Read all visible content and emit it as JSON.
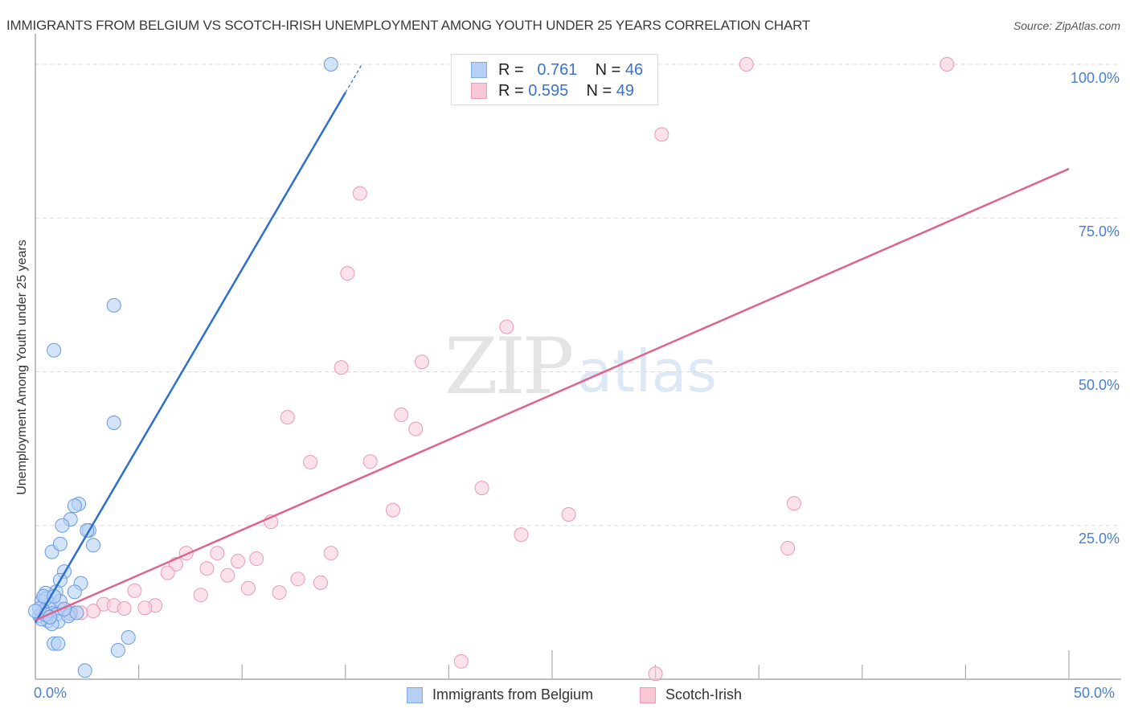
{
  "header": {
    "title": "IMMIGRANTS FROM BELGIUM VS SCOTCH-IRISH UNEMPLOYMENT AMONG YOUTH UNDER 25 YEARS CORRELATION CHART",
    "source": "Source: ZipAtlas.com"
  },
  "watermark": {
    "zip": "ZIP",
    "atlas": "atlas"
  },
  "legend": {
    "rows": [
      {
        "r_label": "R =",
        "r_value": "0.761",
        "n_label": "N =",
        "n_value": "46",
        "color": "#b6d0f5",
        "border": "#7ea8e6"
      },
      {
        "r_label": "R =",
        "r_value": "0.595",
        "n_label": "N =",
        "n_value": "49",
        "color": "#f9c6d6",
        "border": "#ec9bb6"
      }
    ]
  },
  "axes": {
    "y_label": "Unemployment Among Youth under 25 years",
    "y_ticks": [
      "100.0%",
      "75.0%",
      "50.0%",
      "25.0%"
    ],
    "x_ticks": [
      "0.0%",
      "50.0%"
    ]
  },
  "bottom_legend": {
    "items": [
      {
        "label": "Immigrants from Belgium",
        "color": "#b6d0f5",
        "border": "#7ea8e6"
      },
      {
        "label": "Scotch-Irish",
        "color": "#f9c6d6",
        "border": "#ec9bb6"
      }
    ]
  },
  "colors": {
    "blue_line": "#2a6fd1",
    "pink_line": "#e0628f",
    "blue_fill": "#b6d0f5",
    "blue_stroke": "#6a9be0",
    "pink_fill": "#f9cfdc",
    "pink_stroke": "#e99ab5",
    "grid": "#d9d9d9"
  },
  "chart_data": {
    "type": "scatter",
    "title": "IMMIGRANTS FROM BELGIUM VS SCOTCH-IRISH UNEMPLOYMENT AMONG YOUTH UNDER 25 YEARS CORRELATION CHART",
    "xlabel": "",
    "ylabel": "Unemployment Among Youth under 25 years",
    "xlim": [
      0,
      50
    ],
    "ylim": [
      0,
      100
    ],
    "x_ticks": [
      0,
      50
    ],
    "y_ticks": [
      25,
      50,
      75,
      100
    ],
    "grid": true,
    "legend_position": "bottom",
    "series": [
      {
        "name": "Immigrants from Belgium",
        "r": 0.761,
        "n": 46,
        "trend": {
          "x0": 0,
          "y0": 9.2,
          "x1": 15.8,
          "y1": 100
        },
        "points": [
          [
            14.3,
            100
          ],
          [
            3.8,
            60.8
          ],
          [
            0.9,
            53.5
          ],
          [
            3.8,
            41.7
          ],
          [
            2.1,
            28.5
          ],
          [
            1.9,
            28.2
          ],
          [
            1.7,
            26.0
          ],
          [
            1.3,
            25.0
          ],
          [
            2.6,
            24.2
          ],
          [
            2.5,
            24.2
          ],
          [
            0.8,
            20.7
          ],
          [
            1.2,
            22.0
          ],
          [
            2.8,
            21.8
          ],
          [
            1.4,
            17.5
          ],
          [
            1.2,
            16.1
          ],
          [
            2.2,
            15.6
          ],
          [
            1.9,
            14.2
          ],
          [
            1.0,
            14.2
          ],
          [
            0.5,
            14.0
          ],
          [
            0.3,
            12.7
          ],
          [
            0.7,
            12.2
          ],
          [
            0.4,
            11.1
          ],
          [
            0.8,
            10.7
          ],
          [
            1.0,
            10.5
          ],
          [
            1.7,
            10.7
          ],
          [
            0.2,
            10.3
          ],
          [
            0.6,
            9.5
          ],
          [
            1.1,
            9.4
          ],
          [
            0.8,
            9.0
          ],
          [
            0.3,
            9.8
          ],
          [
            0.9,
            5.8
          ],
          [
            1.1,
            5.8
          ],
          [
            4.5,
            6.8
          ],
          [
            4.0,
            4.7
          ],
          [
            2.4,
            1.4
          ],
          [
            0.5,
            13.1
          ],
          [
            0.2,
            11.5
          ],
          [
            0.5,
            10.5
          ],
          [
            1.2,
            12.7
          ],
          [
            1.6,
            10.3
          ],
          [
            0.7,
            10.1
          ],
          [
            2.0,
            10.8
          ],
          [
            0.4,
            13.5
          ],
          [
            0.9,
            13.5
          ],
          [
            0.0,
            11.1
          ],
          [
            1.4,
            11.4
          ]
        ]
      },
      {
        "name": "Scotch-Irish",
        "r": 0.595,
        "n": 49,
        "trend": {
          "x0": 0,
          "y0": 9.6,
          "x1": 50,
          "y1": 83.0
        },
        "points": [
          [
            20.5,
            100
          ],
          [
            34.4,
            100
          ],
          [
            44.1,
            100
          ],
          [
            30.3,
            88.6
          ],
          [
            15.7,
            79.0
          ],
          [
            15.1,
            66.0
          ],
          [
            22.8,
            57.3
          ],
          [
            18.7,
            51.6
          ],
          [
            14.8,
            50.7
          ],
          [
            17.7,
            43.0
          ],
          [
            18.4,
            40.7
          ],
          [
            12.2,
            42.6
          ],
          [
            13.3,
            35.3
          ],
          [
            16.2,
            35.4
          ],
          [
            21.6,
            31.1
          ],
          [
            36.7,
            28.6
          ],
          [
            17.3,
            27.5
          ],
          [
            25.8,
            26.8
          ],
          [
            11.4,
            25.6
          ],
          [
            23.5,
            23.5
          ],
          [
            36.4,
            21.3
          ],
          [
            7.3,
            20.5
          ],
          [
            8.8,
            20.5
          ],
          [
            14.3,
            20.5
          ],
          [
            10.7,
            19.6
          ],
          [
            9.8,
            19.2
          ],
          [
            6.8,
            18.7
          ],
          [
            8.3,
            18.0
          ],
          [
            9.3,
            16.9
          ],
          [
            6.4,
            17.3
          ],
          [
            13.8,
            15.7
          ],
          [
            12.7,
            16.3
          ],
          [
            10.3,
            14.8
          ],
          [
            11.8,
            14.1
          ],
          [
            8.0,
            13.7
          ],
          [
            4.8,
            14.4
          ],
          [
            5.8,
            12.0
          ],
          [
            5.3,
            11.6
          ],
          [
            3.3,
            12.2
          ],
          [
            3.8,
            12.0
          ],
          [
            4.3,
            11.5
          ],
          [
            2.8,
            11.1
          ],
          [
            2.2,
            10.8
          ],
          [
            1.7,
            11.1
          ],
          [
            1.1,
            11.5
          ],
          [
            0.6,
            10.3
          ],
          [
            0.3,
            12.7
          ],
          [
            20.6,
            2.9
          ],
          [
            30.0,
            0.9
          ]
        ]
      }
    ]
  }
}
